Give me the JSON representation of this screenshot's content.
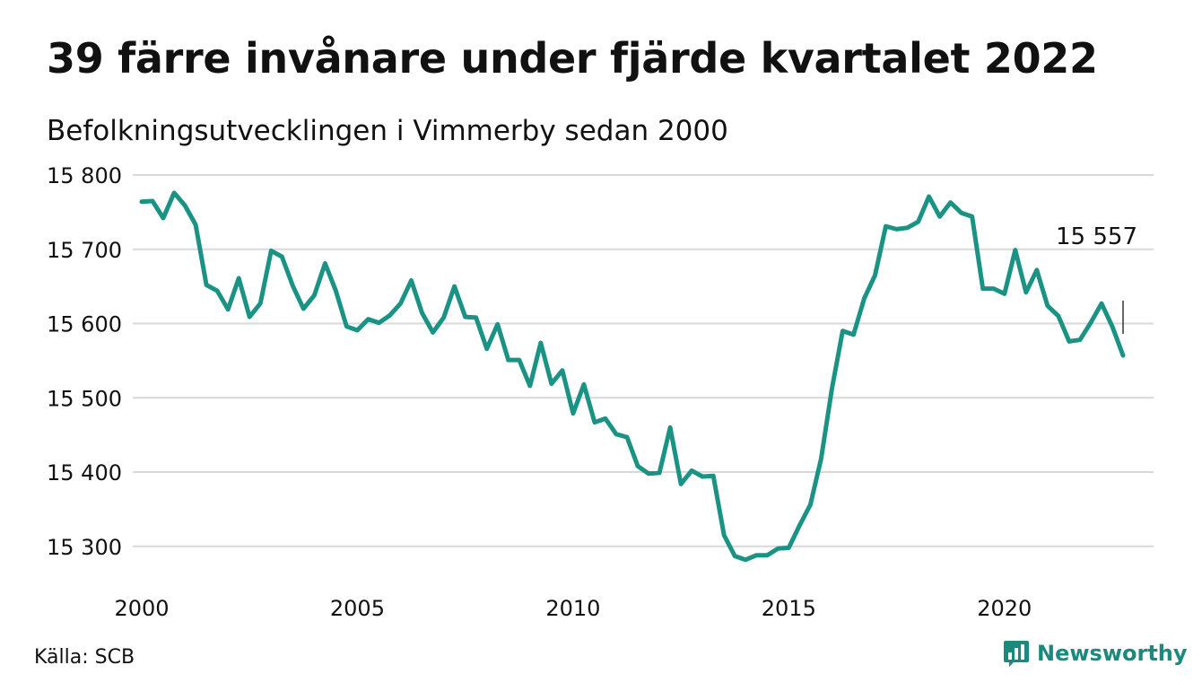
{
  "header": {
    "title": "39 färre invånare under fjärde kvartalet 2022",
    "subtitle": "Befolkningsutvecklingen i Vimmerby sedan 2000"
  },
  "footer": {
    "source": "Källa: SCB",
    "brand": "Newsworthy"
  },
  "colors": {
    "line": "#1a9384",
    "grid": "#d9d9d9",
    "text": "#111111",
    "brand": "#1a8a7d"
  },
  "icons": {
    "brand_logo": "bar-chart-icon"
  },
  "chart_data": {
    "type": "line",
    "title": "39 färre invånare under fjärde kvartalet 2022",
    "subtitle": "Befolkningsutvecklingen i Vimmerby sedan 2000",
    "xlabel": "",
    "ylabel": "",
    "xlim": [
      2000,
      2022.75
    ],
    "ylim": [
      15278,
      15800
    ],
    "yticks": [
      15300,
      15400,
      15500,
      15600,
      15700,
      15800
    ],
    "ytick_labels": [
      "15 300",
      "15 400",
      "15 500",
      "15 600",
      "15 700",
      "15 800"
    ],
    "xticks": [
      2000,
      2005,
      2010,
      2015,
      2020
    ],
    "xtick_labels": [
      "2000",
      "2005",
      "2010",
      "2015",
      "2020"
    ],
    "grid": "horizontal",
    "legend": "none",
    "annotation": {
      "text": "15 557",
      "x": 2022.75,
      "y": 15557
    },
    "series": [
      {
        "x": [
          2000,
          2000.25,
          2000.5,
          2000.75,
          2001,
          2001.25,
          2001.5,
          2001.75,
          2002,
          2002.25,
          2002.5,
          2002.75,
          2003,
          2003.25,
          2003.5,
          2003.75,
          2004,
          2004.25,
          2004.5,
          2004.75,
          2005,
          2005.25,
          2005.5,
          2005.75,
          2006,
          2006.25,
          2006.5,
          2006.75,
          2007,
          2007.25,
          2007.5,
          2007.75,
          2008,
          2008.25,
          2008.5,
          2008.75,
          2009,
          2009.25,
          2009.5,
          2009.75,
          2010,
          2010.25,
          2010.5,
          2010.75,
          2011,
          2011.25,
          2011.5,
          2011.75,
          2012,
          2012.25,
          2012.5,
          2012.75,
          2013,
          2013.25,
          2013.5,
          2013.75,
          2014,
          2014.25,
          2014.5,
          2014.75,
          2015,
          2015.25,
          2015.5,
          2015.75,
          2016,
          2016.25,
          2016.5,
          2016.75,
          2017,
          2017.25,
          2017.5,
          2017.75,
          2018,
          2018.25,
          2018.5,
          2018.75,
          2019,
          2019.25,
          2019.5,
          2019.75,
          2020,
          2020.25,
          2020.5,
          2020.75,
          2021,
          2021.25,
          2021.5,
          2021.75,
          2022,
          2022.25,
          2022.5,
          2022.75
        ],
        "values": [
          15764,
          15765,
          15742,
          15776,
          15759,
          15733,
          15652,
          15644,
          15619,
          15661,
          15609,
          15627,
          15698,
          15690,
          15651,
          15620,
          15638,
          15681,
          15644,
          15596,
          15591,
          15606,
          15601,
          15611,
          15627,
          15658,
          15614,
          15588,
          15608,
          15650,
          15609,
          15608,
          15566,
          15599,
          15551,
          15551,
          15516,
          15574,
          15519,
          15537,
          15479,
          15518,
          15467,
          15472,
          15451,
          15447,
          15408,
          15398,
          15399,
          15460,
          15384,
          15402,
          15394,
          15395,
          15315,
          15287,
          15282,
          15288,
          15288,
          15297,
          15298,
          15328,
          15356,
          15418,
          15512,
          15590,
          15585,
          15634,
          15665,
          15731,
          15727,
          15729,
          15737,
          15771,
          15744,
          15763,
          15749,
          15744,
          15647,
          15647,
          15640,
          15699,
          15642,
          15672,
          15624,
          15610,
          15576,
          15578,
          15601,
          15627,
          15596,
          15557
        ]
      }
    ]
  }
}
